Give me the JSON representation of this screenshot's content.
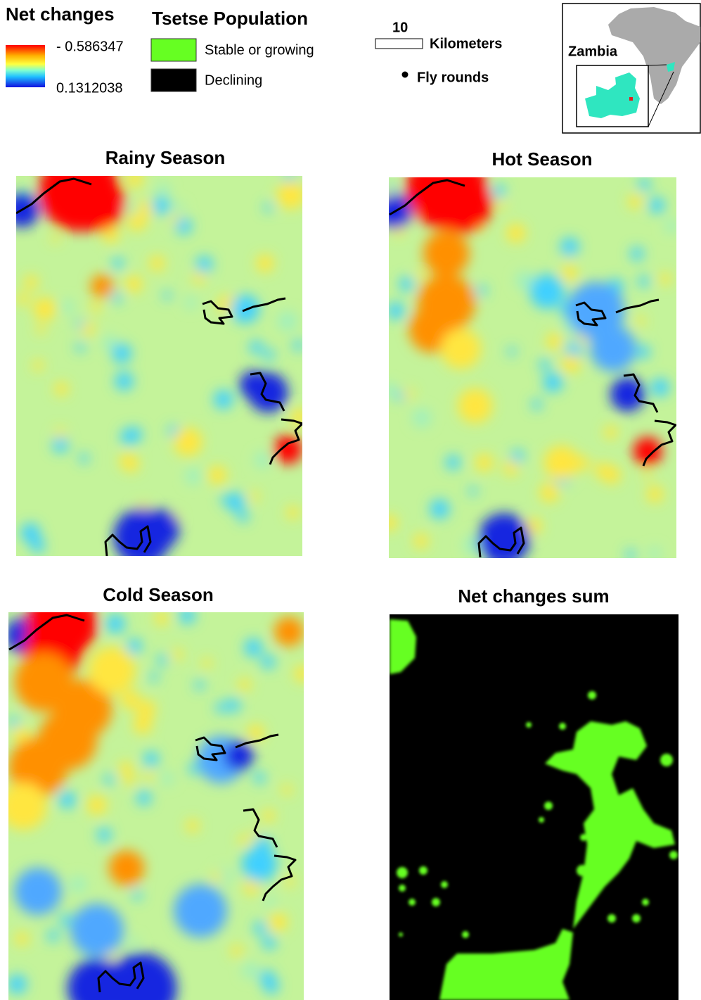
{
  "legend": {
    "net_changes": {
      "title": "Net changes",
      "high": "- 0.586347",
      "low": "0.1312038"
    },
    "tsetse": {
      "title": "Tsetse Population",
      "items": [
        "Stable or growing",
        "Declining"
      ]
    }
  },
  "scale": {
    "length": "10",
    "unit": "Kilometers"
  },
  "fly_rounds": "Fly rounds",
  "inset": {
    "label": "Zambia"
  },
  "panels": [
    "Rainy Season",
    "Hot Season",
    "Cold Season",
    "Net changes sum"
  ]
}
